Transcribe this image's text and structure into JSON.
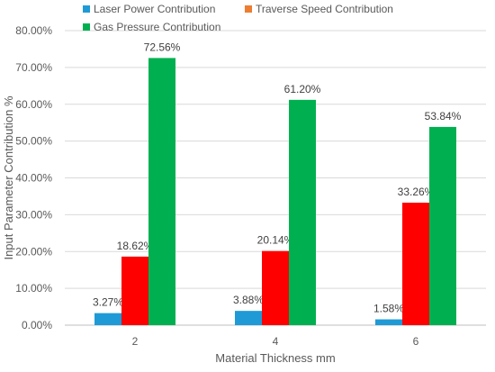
{
  "chart_data": {
    "type": "bar",
    "xlabel": "Material Thickness mm",
    "ylabel": "Input Parameter Contribution %",
    "categories": [
      "2",
      "4",
      "6"
    ],
    "ylim": [
      0,
      80
    ],
    "ytick_labels": [
      "0.00%",
      "10.00%",
      "20.00%",
      "30.00%",
      "40.00%",
      "50.00%",
      "60.00%",
      "70.00%",
      "80.00%"
    ],
    "ytick_values": [
      0,
      10,
      20,
      30,
      40,
      50,
      60,
      70,
      80
    ],
    "grid": true,
    "legend_position": "top",
    "series": [
      {
        "name": "Laser Power Contribution",
        "color": "#1f9ad6",
        "values": [
          3.27,
          3.88,
          1.58
        ],
        "labels": [
          "3.27%",
          "3.88%",
          "1.58%"
        ]
      },
      {
        "name": "Traverse Speed Contribution",
        "color": "#ff0000",
        "values": [
          18.62,
          20.14,
          33.26
        ],
        "labels": [
          "18.62%",
          "20.14%",
          "33.26%"
        ]
      },
      {
        "name": "Gas Pressure Contribution",
        "color": "#00b050",
        "values": [
          72.56,
          61.2,
          53.84
        ],
        "labels": [
          "72.56%",
          "61.20%",
          "53.84%"
        ]
      }
    ],
    "legend_swatch_colors": [
      "#1f9ad6",
      "#ed7d31",
      "#00b050"
    ]
  }
}
